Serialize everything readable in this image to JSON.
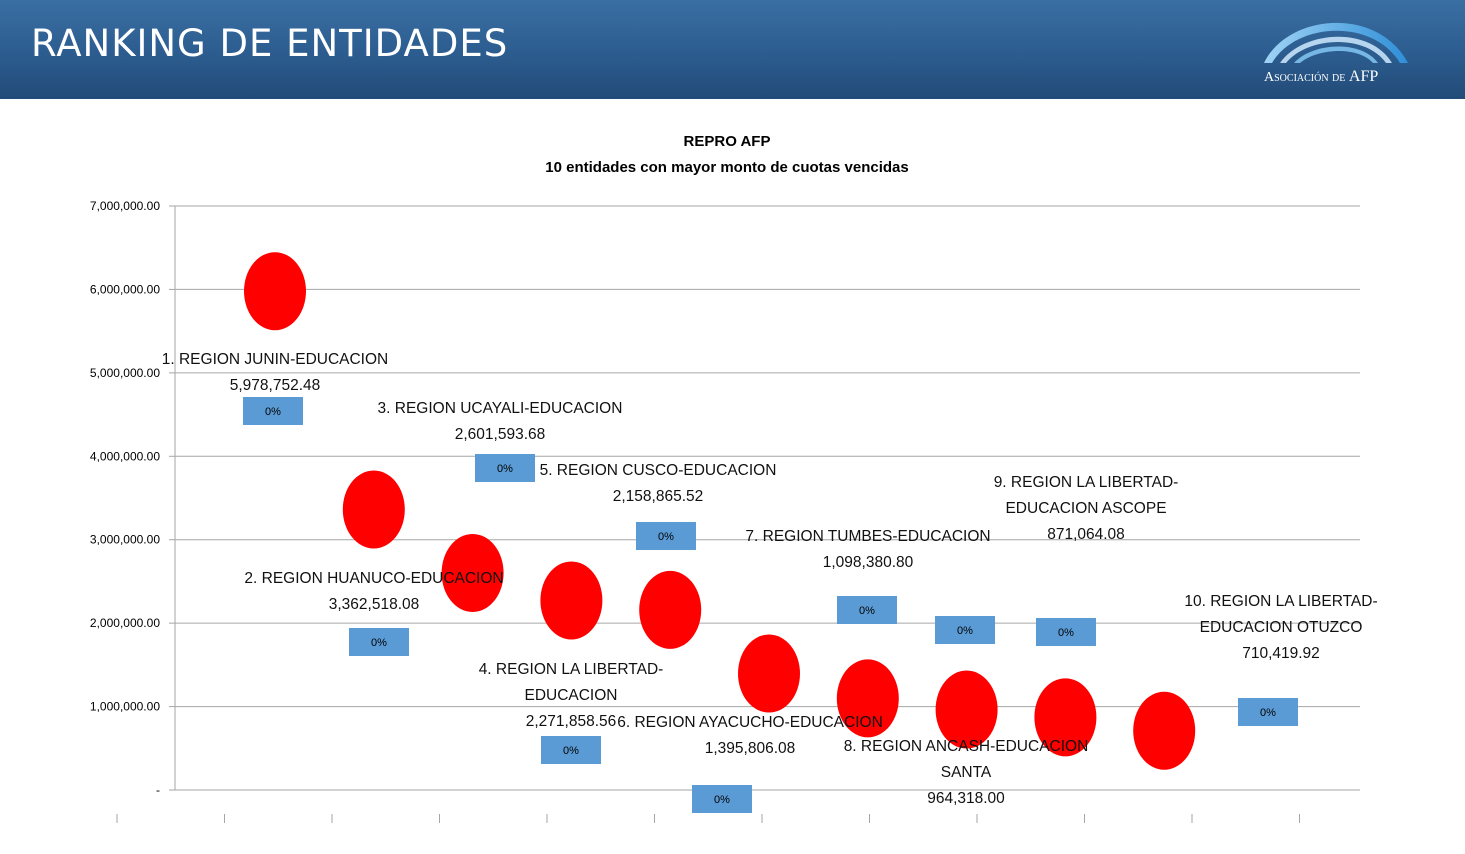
{
  "header": {
    "title": "RANKING DE ENTIDADES",
    "logo_text_small": "Asociación de",
    "logo_text_big": "AFP"
  },
  "colors": {
    "header": "#2c5c8f",
    "bubble": "#ff0000",
    "label_box": "#5b9bd5",
    "grid": "#a6a6a6"
  },
  "chart_data": {
    "type": "scatter",
    "title": "REPRO AFP",
    "subtitle": "10 entidades con mayor monto de cuotas vencidas",
    "ylim": [
      0,
      7000000
    ],
    "yticks": [
      {
        "value": 0,
        "label": "-"
      },
      {
        "value": 1000000,
        "label": "1,000,000.00"
      },
      {
        "value": 2000000,
        "label": "2,000,000.00"
      },
      {
        "value": 3000000,
        "label": "3,000,000.00"
      },
      {
        "value": 4000000,
        "label": "4,000,000.00"
      },
      {
        "value": 5000000,
        "label": "5,000,000.00"
      },
      {
        "value": 6000000,
        "label": "6,000,000.00"
      },
      {
        "value": 7000000,
        "label": "7,000,000.00"
      }
    ],
    "grid": true,
    "points": [
      {
        "x": 1,
        "y": 5978752.48,
        "label_lines": [
          "1. REGION JUNIN-EDUCACION"
        ],
        "value_label": "5,978,752.48",
        "pct": "0%"
      },
      {
        "x": 2,
        "y": 3362518.08,
        "label_lines": [
          "2. REGION HUANUCO-EDUCACION"
        ],
        "value_label": "3,362,518.08",
        "pct": "0%"
      },
      {
        "x": 3,
        "y": 2601593.68,
        "label_lines": [
          "3. REGION UCAYALI-EDUCACION"
        ],
        "value_label": "2,601,593.68",
        "pct": "0%"
      },
      {
        "x": 4,
        "y": 2271858.56,
        "label_lines": [
          "4. REGION LA LIBERTAD-",
          "EDUCACION"
        ],
        "value_label": "2,271,858.56",
        "pct": "0%"
      },
      {
        "x": 5,
        "y": 2158865.52,
        "label_lines": [
          "5. REGION CUSCO-EDUCACION"
        ],
        "value_label": "2,158,865.52",
        "pct": "0%"
      },
      {
        "x": 6,
        "y": 1395806.08,
        "label_lines": [
          "6. REGION AYACUCHO-EDUCACION"
        ],
        "value_label": "1,395,806.08",
        "pct": "0%"
      },
      {
        "x": 7,
        "y": 1098380.8,
        "label_lines": [
          "7. REGION TUMBES-EDUCACION"
        ],
        "value_label": "1,098,380.80",
        "pct": "0%"
      },
      {
        "x": 8,
        "y": 964318.0,
        "label_lines": [
          "8. REGION ANCASH-EDUCACION",
          "SANTA"
        ],
        "value_label": "964,318.00",
        "pct": "0%"
      },
      {
        "x": 9,
        "y": 871064.08,
        "label_lines": [
          "9. REGION LA LIBERTAD-",
          "EDUCACION ASCOPE"
        ],
        "value_label": "871,064.08",
        "pct": "0%"
      },
      {
        "x": 10,
        "y": 710419.92,
        "label_lines": [
          "10. REGION LA LIBERTAD-",
          "EDUCACION OTUZCO"
        ],
        "value_label": "710,419.92",
        "pct": "0%"
      }
    ]
  }
}
